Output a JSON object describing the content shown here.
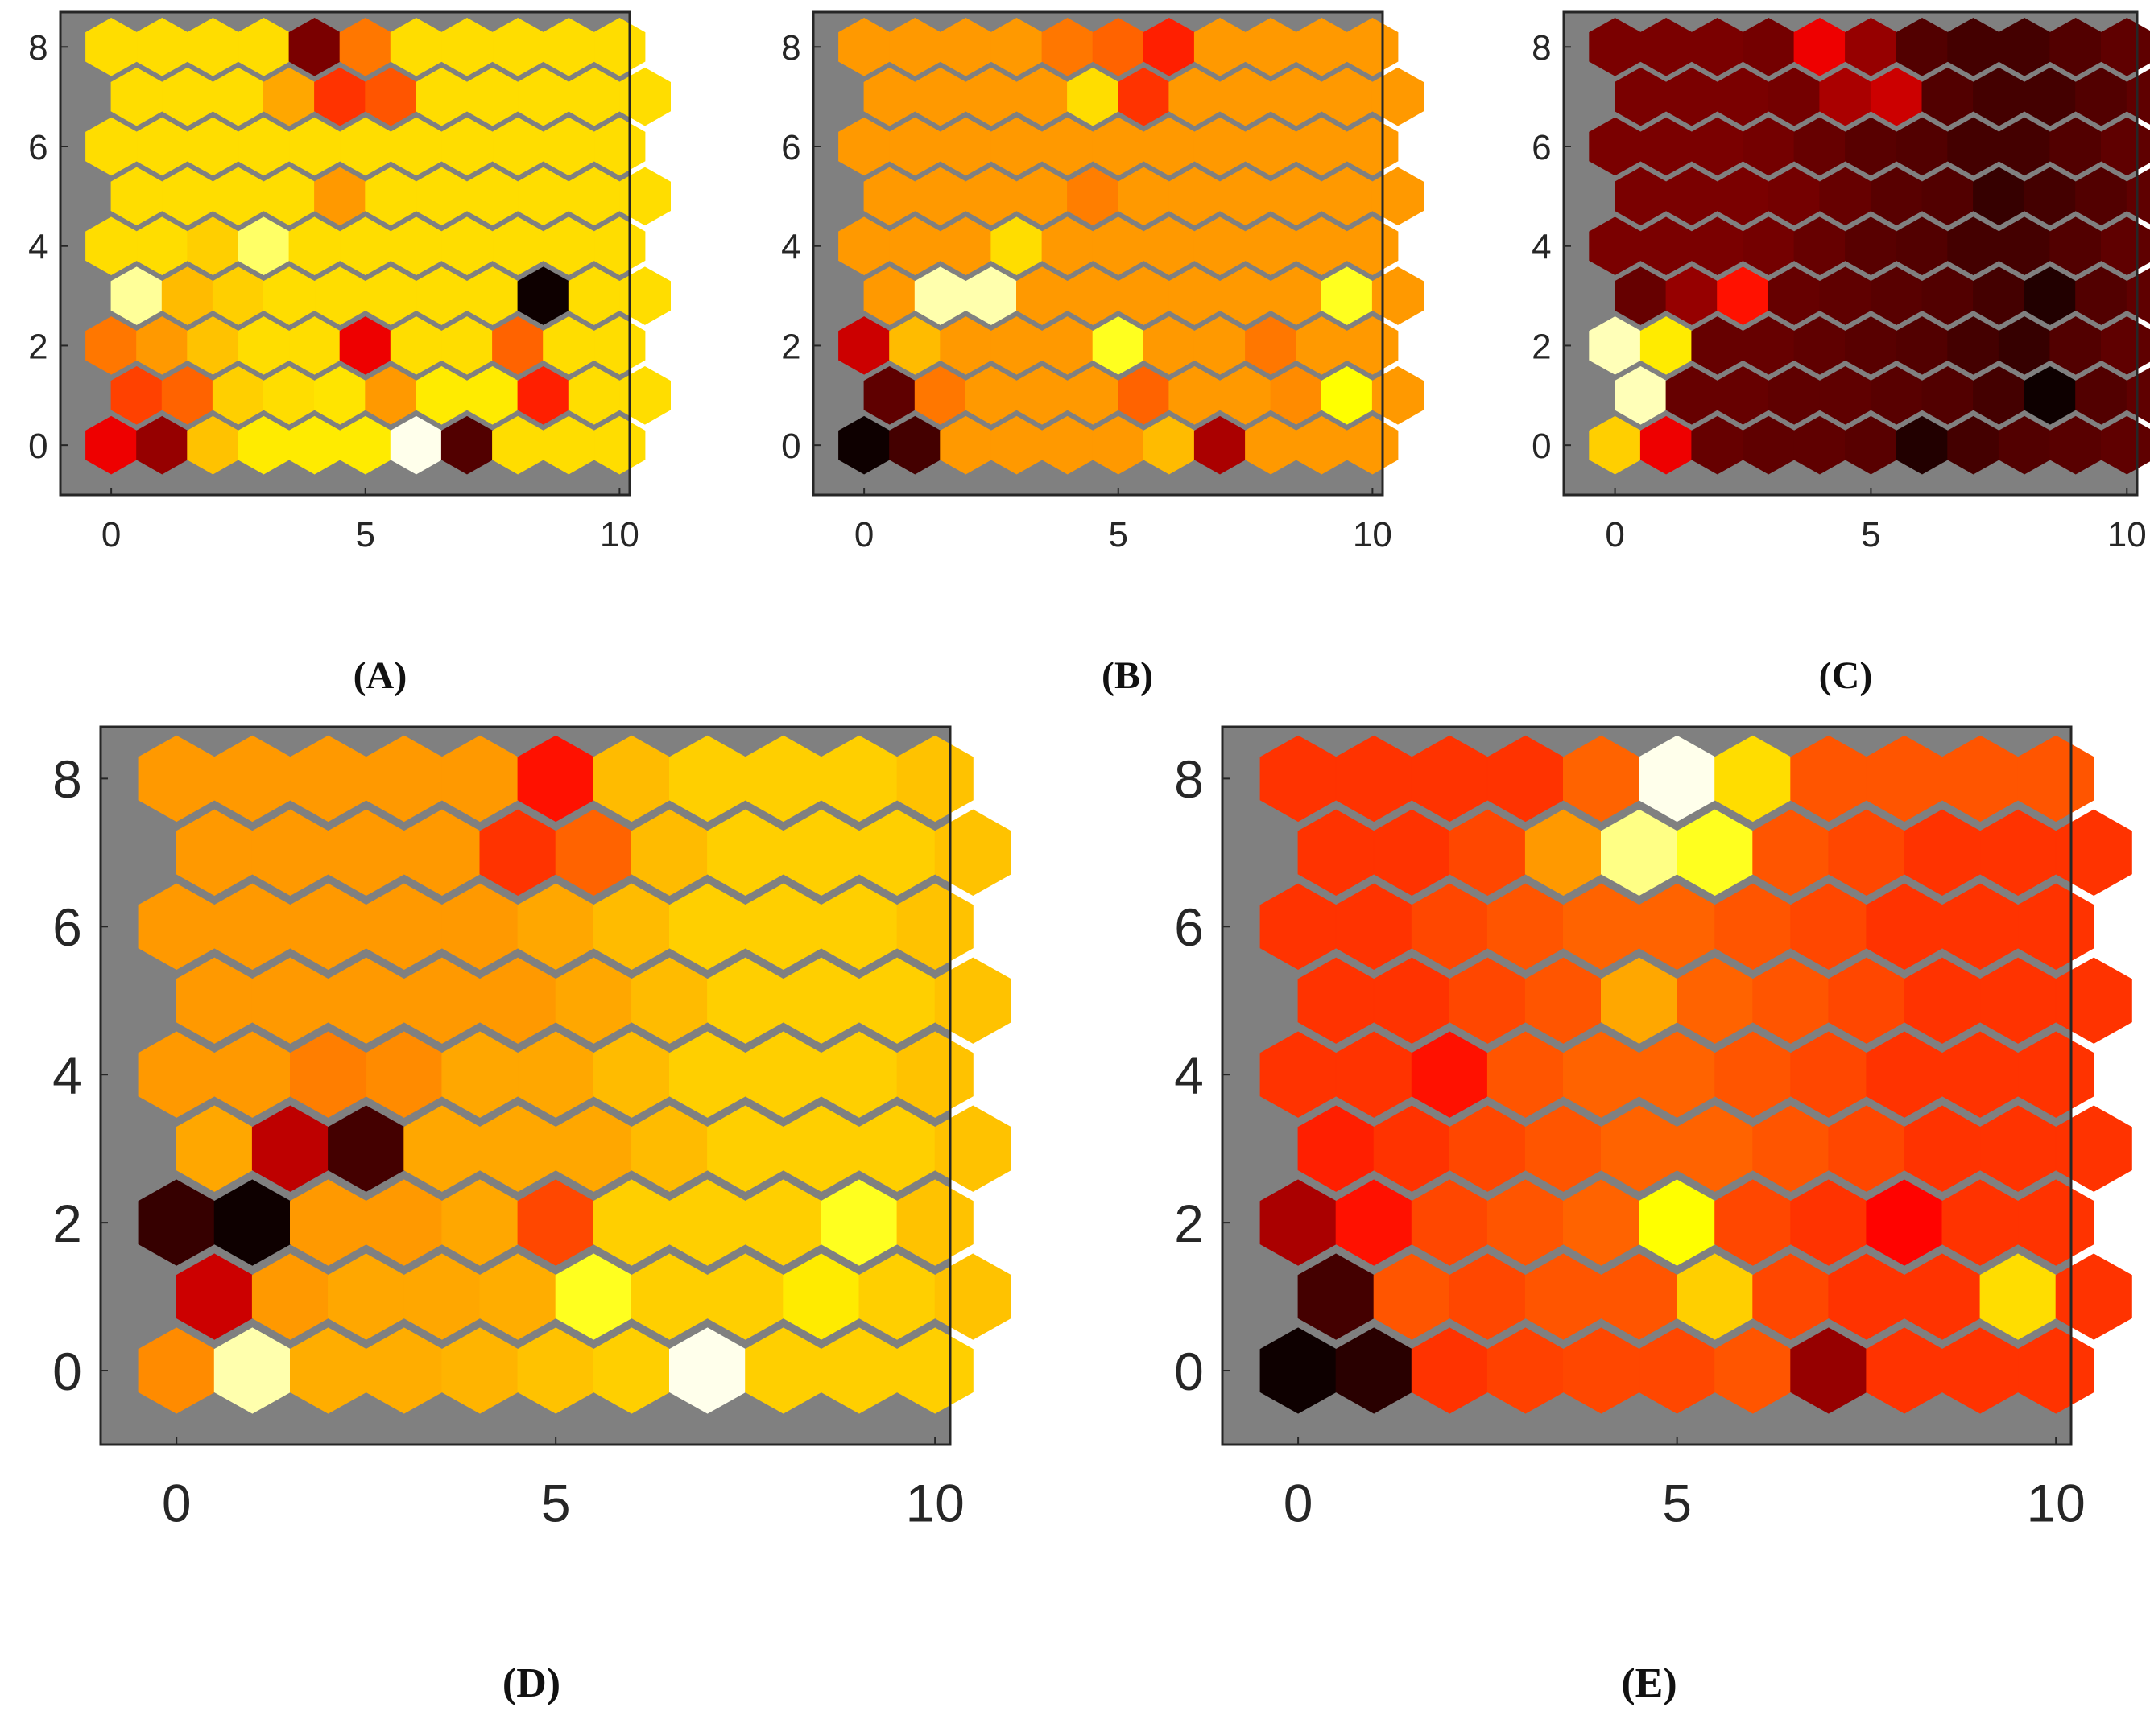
{
  "chart_data": [
    {
      "type": "heatmap",
      "label": "(A)",
      "grid": {
        "cols": 11,
        "rows": 9
      },
      "xlim": [
        -1,
        10.2
      ],
      "ylim": [
        -1,
        8.7
      ],
      "xticks": [
        0,
        5,
        10
      ],
      "xtick_labels": [
        "0",
        "5",
        "10"
      ],
      "yticks": [
        0,
        2,
        4,
        6,
        8
      ],
      "ytick_labels": [
        "0",
        "2",
        "4",
        "6",
        "8"
      ],
      "background": "#808080",
      "values": [
        [
          0.35,
          0.22,
          0.66,
          0.72,
          0.72,
          0.72,
          0.98,
          0.12,
          0.7,
          0.7,
          0.7
        ],
        [
          0.47,
          0.52,
          0.68,
          0.7,
          0.71,
          0.6,
          0.72,
          0.72,
          0.42,
          0.7,
          0.7
        ],
        [
          0.55,
          0.6,
          0.66,
          0.7,
          0.7,
          0.35,
          0.7,
          0.7,
          0.52,
          0.7,
          0.7
        ],
        [
          0.9,
          0.65,
          0.68,
          0.7,
          0.7,
          0.7,
          0.7,
          0.7,
          0.02,
          0.7,
          0.7
        ],
        [
          0.7,
          0.7,
          0.68,
          0.85,
          0.7,
          0.7,
          0.7,
          0.7,
          0.7,
          0.7,
          0.7
        ],
        [
          0.7,
          0.7,
          0.7,
          0.7,
          0.6,
          0.7,
          0.7,
          0.7,
          0.7,
          0.7,
          0.7
        ],
        [
          0.7,
          0.7,
          0.7,
          0.7,
          0.7,
          0.7,
          0.7,
          0.7,
          0.7,
          0.7,
          0.7
        ],
        [
          0.7,
          0.7,
          0.7,
          0.62,
          0.45,
          0.5,
          0.7,
          0.7,
          0.7,
          0.7,
          0.7
        ],
        [
          0.7,
          0.7,
          0.7,
          0.7,
          0.18,
          0.55,
          0.7,
          0.7,
          0.7,
          0.7,
          0.7
        ]
      ]
    },
    {
      "type": "heatmap",
      "label": "(B)",
      "grid": {
        "cols": 11,
        "rows": 9
      },
      "xlim": [
        -1,
        10.2
      ],
      "ylim": [
        -1,
        8.7
      ],
      "xticks": [
        0,
        5,
        10
      ],
      "xtick_labels": [
        "0",
        "5",
        "10"
      ],
      "yticks": [
        0,
        2,
        4,
        6,
        8
      ],
      "ytick_labels": [
        "0",
        "2",
        "4",
        "6",
        "8"
      ],
      "background": "#808080",
      "values": [
        [
          0.02,
          0.1,
          0.6,
          0.6,
          0.6,
          0.6,
          0.65,
          0.25,
          0.6,
          0.6,
          0.6
        ],
        [
          0.14,
          0.55,
          0.6,
          0.6,
          0.6,
          0.52,
          0.6,
          0.6,
          0.58,
          0.75,
          0.6
        ],
        [
          0.3,
          0.65,
          0.6,
          0.6,
          0.6,
          0.78,
          0.6,
          0.6,
          0.55,
          0.6,
          0.6
        ],
        [
          0.6,
          0.92,
          0.92,
          0.6,
          0.6,
          0.6,
          0.6,
          0.6,
          0.6,
          0.78,
          0.6
        ],
        [
          0.6,
          0.6,
          0.6,
          0.7,
          0.6,
          0.6,
          0.6,
          0.6,
          0.6,
          0.6,
          0.6
        ],
        [
          0.6,
          0.6,
          0.6,
          0.6,
          0.56,
          0.6,
          0.6,
          0.6,
          0.6,
          0.6,
          0.6
        ],
        [
          0.6,
          0.6,
          0.6,
          0.6,
          0.6,
          0.6,
          0.6,
          0.6,
          0.6,
          0.6,
          0.6
        ],
        [
          0.6,
          0.6,
          0.6,
          0.6,
          0.7,
          0.45,
          0.6,
          0.6,
          0.6,
          0.6,
          0.6
        ],
        [
          0.6,
          0.6,
          0.6,
          0.6,
          0.55,
          0.52,
          0.42,
          0.6,
          0.6,
          0.6,
          0.6
        ]
      ]
    },
    {
      "type": "heatmap",
      "label": "(C)",
      "grid": {
        "cols": 11,
        "rows": 9
      },
      "xlim": [
        -1,
        10.2
      ],
      "ylim": [
        -1,
        8.7
      ],
      "xticks": [
        0,
        5,
        10
      ],
      "xtick_labels": [
        "0",
        "5",
        "10"
      ],
      "yticks": [
        0,
        2,
        4,
        6,
        8
      ],
      "ytick_labels": [
        "0",
        "2",
        "4",
        "6",
        "8"
      ],
      "background": "#808080",
      "values": [
        [
          0.68,
          0.35,
          0.15,
          0.14,
          0.14,
          0.13,
          0.05,
          0.1,
          0.12,
          0.13,
          0.14
        ],
        [
          0.93,
          0.15,
          0.15,
          0.14,
          0.14,
          0.13,
          0.12,
          0.1,
          0.02,
          0.12,
          0.14
        ],
        [
          0.93,
          0.72,
          0.15,
          0.15,
          0.14,
          0.13,
          0.12,
          0.1,
          0.08,
          0.12,
          0.14
        ],
        [
          0.15,
          0.22,
          0.4,
          0.15,
          0.14,
          0.13,
          0.12,
          0.1,
          0.05,
          0.12,
          0.14
        ],
        [
          0.18,
          0.18,
          0.18,
          0.17,
          0.15,
          0.13,
          0.12,
          0.1,
          0.1,
          0.12,
          0.14
        ],
        [
          0.18,
          0.18,
          0.18,
          0.17,
          0.15,
          0.13,
          0.12,
          0.08,
          0.1,
          0.12,
          0.14
        ],
        [
          0.18,
          0.18,
          0.18,
          0.17,
          0.15,
          0.13,
          0.12,
          0.1,
          0.1,
          0.12,
          0.14
        ],
        [
          0.18,
          0.18,
          0.18,
          0.17,
          0.25,
          0.3,
          0.12,
          0.1,
          0.1,
          0.12,
          0.14
        ],
        [
          0.18,
          0.18,
          0.18,
          0.17,
          0.35,
          0.22,
          0.12,
          0.1,
          0.1,
          0.12,
          0.14
        ]
      ]
    },
    {
      "type": "heatmap",
      "label": "(D)",
      "grid": {
        "cols": 11,
        "rows": 9
      },
      "xlim": [
        -1,
        10.2
      ],
      "ylim": [
        -1,
        8.7
      ],
      "xticks": [
        0,
        5,
        10
      ],
      "xtick_labels": [
        "0",
        "5",
        "10"
      ],
      "yticks": [
        0,
        2,
        4,
        6,
        8
      ],
      "ytick_labels": [
        "0",
        "2",
        "4",
        "6",
        "8"
      ],
      "background": "#808080",
      "values": [
        [
          0.58,
          0.92,
          0.63,
          0.63,
          0.64,
          0.66,
          0.68,
          0.98,
          0.68,
          0.68,
          0.68
        ],
        [
          0.3,
          0.6,
          0.62,
          0.62,
          0.63,
          0.78,
          0.68,
          0.68,
          0.72,
          0.68,
          0.66
        ],
        [
          0.08,
          0.02,
          0.6,
          0.6,
          0.62,
          0.48,
          0.68,
          0.68,
          0.68,
          0.78,
          0.66
        ],
        [
          0.62,
          0.28,
          0.1,
          0.62,
          0.62,
          0.62,
          0.65,
          0.68,
          0.68,
          0.68,
          0.66
        ],
        [
          0.6,
          0.6,
          0.56,
          0.58,
          0.62,
          0.62,
          0.65,
          0.68,
          0.68,
          0.68,
          0.66
        ],
        [
          0.6,
          0.6,
          0.6,
          0.6,
          0.6,
          0.62,
          0.65,
          0.68,
          0.68,
          0.68,
          0.66
        ],
        [
          0.6,
          0.6,
          0.6,
          0.6,
          0.6,
          0.62,
          0.65,
          0.68,
          0.68,
          0.68,
          0.66
        ],
        [
          0.6,
          0.6,
          0.6,
          0.6,
          0.45,
          0.52,
          0.65,
          0.68,
          0.68,
          0.68,
          0.66
        ],
        [
          0.6,
          0.6,
          0.6,
          0.6,
          0.6,
          0.4,
          0.65,
          0.68,
          0.68,
          0.68,
          0.66
        ]
      ]
    },
    {
      "type": "heatmap",
      "label": "(E)",
      "grid": {
        "cols": 11,
        "rows": 9
      },
      "xlim": [
        -1,
        10.2
      ],
      "ylim": [
        -1,
        8.7
      ],
      "xticks": [
        0,
        5,
        10
      ],
      "xtick_labels": [
        "0",
        "5",
        "10"
      ],
      "yticks": [
        0,
        2,
        4,
        6,
        8
      ],
      "ytick_labels": [
        "0",
        "2",
        "4",
        "6",
        "8"
      ],
      "background": "#808080",
      "values": [
        [
          0.02,
          0.06,
          0.45,
          0.47,
          0.48,
          0.48,
          0.5,
          0.22,
          0.45,
          0.45,
          0.45
        ],
        [
          0.1,
          0.5,
          0.48,
          0.5,
          0.5,
          0.68,
          0.48,
          0.45,
          0.45,
          0.7,
          0.45
        ],
        [
          0.25,
          0.4,
          0.48,
          0.5,
          0.52,
          0.75,
          0.48,
          0.45,
          0.38,
          0.45,
          0.45
        ],
        [
          0.42,
          0.45,
          0.48,
          0.5,
          0.52,
          0.52,
          0.5,
          0.48,
          0.45,
          0.45,
          0.45
        ],
        [
          0.45,
          0.45,
          0.4,
          0.5,
          0.52,
          0.52,
          0.5,
          0.48,
          0.45,
          0.45,
          0.45
        ],
        [
          0.45,
          0.45,
          0.48,
          0.5,
          0.62,
          0.52,
          0.5,
          0.48,
          0.45,
          0.45,
          0.45
        ],
        [
          0.45,
          0.45,
          0.48,
          0.5,
          0.52,
          0.52,
          0.5,
          0.48,
          0.45,
          0.45,
          0.45
        ],
        [
          0.45,
          0.45,
          0.48,
          0.6,
          0.88,
          0.78,
          0.5,
          0.48,
          0.45,
          0.45,
          0.45
        ],
        [
          0.45,
          0.45,
          0.45,
          0.45,
          0.52,
          0.98,
          0.7,
          0.5,
          0.5,
          0.5,
          0.5
        ]
      ]
    }
  ]
}
